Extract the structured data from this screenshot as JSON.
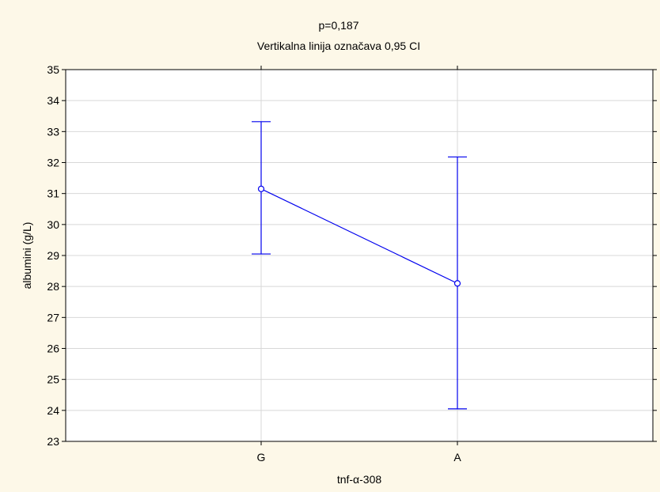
{
  "chart_data": {
    "type": "line",
    "title": "p=0,187",
    "subtitle": "Vertikalna linija označava 0,95 CI",
    "xlabel": "tnf-α-308",
    "ylabel": "albumini (g/L)",
    "categories": [
      "G",
      "A"
    ],
    "series": [
      {
        "values": [
          31.15,
          28.1
        ],
        "ci_lower": [
          29.05,
          24.05
        ],
        "ci_upper": [
          33.32,
          32.18
        ]
      }
    ],
    "ylim": [
      23,
      35
    ],
    "yticks": [
      "23",
      "24",
      "25",
      "26",
      "27",
      "28",
      "29",
      "30",
      "31",
      "32",
      "33",
      "34",
      "35"
    ],
    "grid": true,
    "legend": "none",
    "colors": {
      "series": "#0000ee",
      "background": "#fdf8e8",
      "plot_background": "#ffffff",
      "grid": "#d8d8d8"
    }
  }
}
